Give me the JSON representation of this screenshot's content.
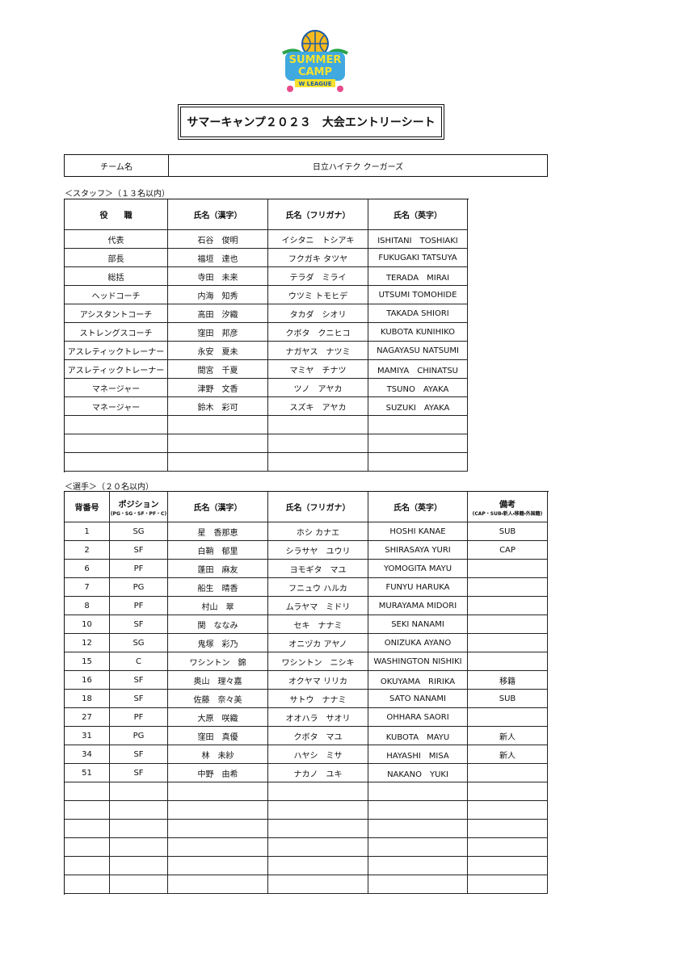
{
  "logo": {
    "line1": "SUMMER",
    "line2": "CAMP",
    "line3": "W LEAGUE"
  },
  "title": "サマーキャンプ２０２３　大会エントリーシート",
  "team": {
    "label": "チーム名",
    "name": "日立ハイテク クーガーズ"
  },
  "staff": {
    "caption": "＜スタッフ＞（１３名以内）",
    "headers": [
      "役　　職",
      "氏名（漢字）",
      "氏名（フリガナ）",
      "氏名（英字）"
    ],
    "rows": [
      [
        "代表",
        "石谷　俊明",
        "イシタニ　トシアキ",
        "ISHITANI　TOSHIAKI"
      ],
      [
        "部長",
        "福垣　達也",
        "フクガキ タツヤ",
        "FUKUGAKI TATSUYA"
      ],
      [
        "総括",
        "寺田　未来",
        "テラダ　ミライ",
        "TERADA　MIRAI"
      ],
      [
        "ヘッドコーチ",
        "内海　知秀",
        "ウツミ トモヒデ",
        "UTSUMI TOMOHIDE"
      ],
      [
        "アシスタントコーチ",
        "高田　汐織",
        "タカダ　シオリ",
        "TAKADA SHIORI"
      ],
      [
        "ストレングスコーチ",
        "窪田　邦彦",
        "クボタ　クニヒコ",
        "KUBOTA KUNIHIKO"
      ],
      [
        "アスレティックトレーナー",
        "永安　夏未",
        "ナガヤス　ナツミ",
        "NAGAYASU NATSUMI"
      ],
      [
        "アスレティックトレーナー",
        "間宮　千夏",
        "マミヤ　チナツ",
        "MAMIYA　CHINATSU"
      ],
      [
        "マネージャー",
        "津野　文香",
        "ツノ　アヤカ",
        "TSUNO　AYAKA"
      ],
      [
        "マネージャー",
        "鈴木　彩可",
        "スズキ　アヤカ",
        "SUZUKI　AYAKA"
      ]
    ]
  },
  "players": {
    "caption": "＜選手＞（２０名以内）",
    "headers": {
      "number": "背番号",
      "position": "ポジション",
      "position_note": "(PG・SG・SF・PF・C)",
      "name_kanji": "氏名（漢字）",
      "name_kana": "氏名（フリガナ）",
      "name_en": "氏名（英字）",
      "remark": "備考",
      "remark_note": "(CAP・SUB・新人・移籍・外国籍)"
    },
    "rows": [
      {
        "number": 1,
        "position": "SG",
        "name_kanji": "星　香那恵",
        "name_kana": "ホシ カナエ",
        "name_en": "HOSHI KANAE",
        "remark": "SUB"
      },
      {
        "number": 2,
        "position": "SF",
        "name_kanji": "白鞘　郁里",
        "name_kana": "シラサヤ　ユウリ",
        "name_en": "SHIRASAYA YURI",
        "remark": "CAP"
      },
      {
        "number": 6,
        "position": "PF",
        "name_kanji": "蓬田　麻友",
        "name_kana": "ヨモギタ　マユ",
        "name_en": "YOMOGITA MAYU"
      },
      {
        "number": 7,
        "position": "PG",
        "name_kanji": "船生　晴香",
        "name_kana": "フニュウ ハルカ",
        "name_en": "FUNYU HARUKA"
      },
      {
        "number": 8,
        "position": "PF",
        "name_kanji": "村山　翠",
        "name_kana": "ムラヤマ　ミドリ",
        "name_en": "MURAYAMA MIDORI"
      },
      {
        "number": 10,
        "position": "SF",
        "name_kanji": "関　ななみ",
        "name_kana": "セキ　ナナミ",
        "name_en": "SEKI NANAMI"
      },
      {
        "number": 12,
        "position": "SG",
        "name_kanji": "鬼塚　彩乃",
        "name_kana": "オニヅカ アヤノ",
        "name_en": "ONIZUKA AYANO"
      },
      {
        "number": 15,
        "position": "C",
        "name_kanji": "ワシントン　錦",
        "name_kana": "ワシントン　ニシキ",
        "name_en": "WASHINGTON NISHIKI"
      },
      {
        "number": 16,
        "position": "SF",
        "name_kanji": "奥山　理々嘉",
        "name_kana": "オクヤマ リリカ",
        "name_en": "OKUYAMA　RIRIKA",
        "remark": "移籍"
      },
      {
        "number": 18,
        "position": "SF",
        "name_kanji": "佐藤　奈々美",
        "name_kana": "サトウ　ナナミ",
        "name_en": "SATO NANAMI",
        "remark": "SUB"
      },
      {
        "number": 27,
        "position": "PF",
        "name_kanji": "大原　咲織",
        "name_kana": "オオハラ　サオリ",
        "name_en": "OHHARA SAORI"
      },
      {
        "number": 31,
        "position": "PG",
        "name_kanji": "窪田　真優",
        "name_kana": "クボタ　マユ",
        "name_en": "KUBOTA　MAYU",
        "remark": "新人"
      },
      {
        "number": 34,
        "position": "SF",
        "name_kanji": "林　未紗",
        "name_kana": "ハヤシ　ミサ",
        "name_en": "HAYASHI　MISA",
        "remark": "新人"
      },
      {
        "number": 51,
        "position": "SF",
        "name_kanji": "中野　由希",
        "name_kana": "ナカノ　ユキ",
        "name_en": "NAKANO　YUKI"
      }
    ]
  }
}
